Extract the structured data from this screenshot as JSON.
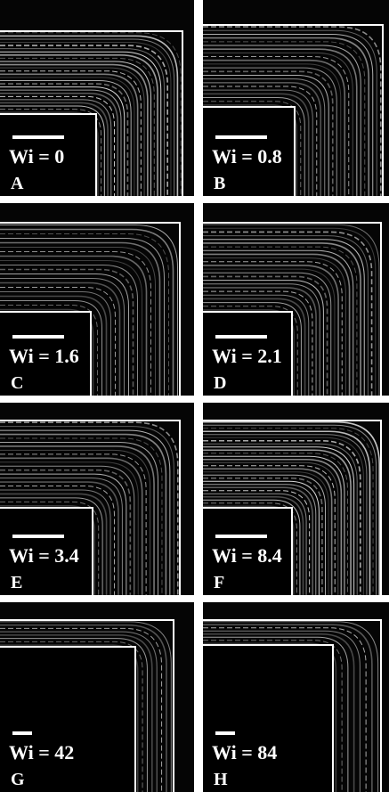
{
  "panels": [
    {
      "caption": "Wi = 0",
      "label": "A"
    },
    {
      "caption": "Wi = 0.8",
      "label": "B"
    },
    {
      "caption": "Wi = 1.6",
      "label": "C"
    },
    {
      "caption": "Wi = 2.1",
      "label": "D"
    },
    {
      "caption": "Wi = 3.4",
      "label": "E"
    },
    {
      "caption": "Wi = 8.4",
      "label": "F"
    },
    {
      "caption": "Wi = 42",
      "label": "G"
    },
    {
      "caption": "Wi = 84",
      "label": "H"
    }
  ]
}
